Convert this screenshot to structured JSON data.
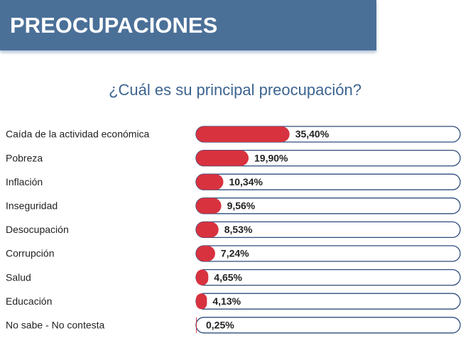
{
  "chart_data": {
    "type": "bar",
    "title": "PREOCUPACIONES",
    "subtitle": "¿Cuál es su principal preocupación?",
    "categories": [
      "Caída de la actividad económica",
      "Pobreza",
      "Inflación",
      "Inseguridad",
      "Desocupación",
      "Corrupción",
      "Salud",
      "Educación",
      "No sabe - No contesta"
    ],
    "values": [
      35.4,
      19.9,
      10.34,
      9.56,
      8.53,
      7.24,
      4.65,
      4.13,
      0.25
    ],
    "value_labels": [
      "35,40%",
      "19,90%",
      "10,34%",
      "9,56%",
      "8,53%",
      "7,24%",
      "4,65%",
      "4,13%",
      "0,25%"
    ],
    "color": "#d8323f",
    "xlim": [
      0,
      100
    ]
  }
}
